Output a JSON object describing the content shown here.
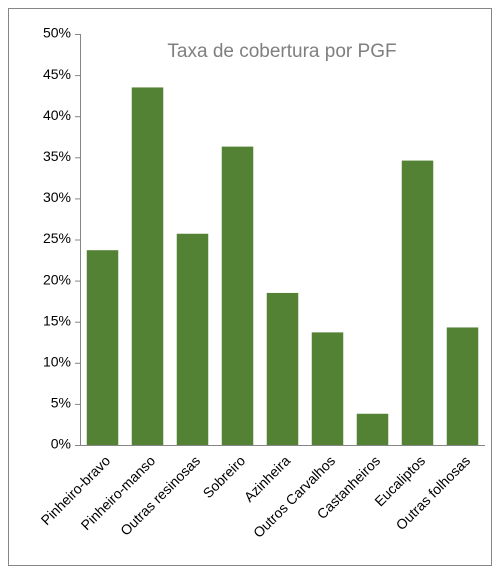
{
  "chart_data": {
    "type": "bar",
    "title": "Taxa de cobertura por PGF",
    "categories": [
      "Pinheiro-bravo",
      "Pinheiro-manso",
      "Outras resinosas",
      "Sobreiro",
      "Azinheira",
      "Outros Carvalhos",
      "Castanheiros",
      "Eucaliptos",
      "Outras folhosas"
    ],
    "values": [
      23.7,
      43.5,
      25.7,
      36.3,
      18.5,
      13.7,
      3.8,
      34.6,
      14.3
    ],
    "color": "#548235",
    "ylim": [
      0,
      50
    ],
    "yticks": [
      {
        "value": 0,
        "label": "0%"
      },
      {
        "value": 5,
        "label": "5%"
      },
      {
        "value": 10,
        "label": "10%"
      },
      {
        "value": 15,
        "label": "15%"
      },
      {
        "value": 20,
        "label": "20%"
      },
      {
        "value": 25,
        "label": "25%"
      },
      {
        "value": 30,
        "label": "30%"
      },
      {
        "value": 35,
        "label": "35%"
      },
      {
        "value": 40,
        "label": "40%"
      },
      {
        "value": 45,
        "label": "45%"
      },
      {
        "value": 50,
        "label": "50%"
      }
    ],
    "grid": false
  }
}
